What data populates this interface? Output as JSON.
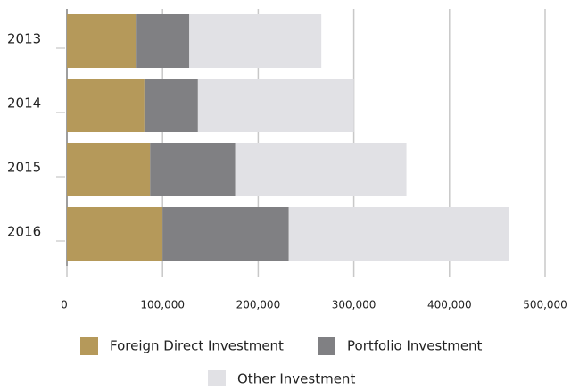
{
  "chart_data": {
    "type": "stacked_barh",
    "categories": [
      "2013",
      "2014",
      "2015",
      "2016"
    ],
    "series": [
      {
        "name": "Foreign Direct Investment",
        "color": "#b5995a",
        "values": [
          72000,
          81000,
          87000,
          100000
        ]
      },
      {
        "name": "Portfolio Investment",
        "color": "#808083",
        "values": [
          56000,
          56000,
          89000,
          132000
        ]
      },
      {
        "name": "Other Investment",
        "color": "#e1e1e5",
        "values": [
          138000,
          163000,
          179000,
          230000
        ]
      }
    ],
    "xlim": [
      0,
      500000
    ],
    "xticks": [
      0,
      {
        "value": 100000,
        "label": "100,000"
      },
      {
        "value": 200000,
        "label": "200,000"
      },
      {
        "value": 300000,
        "label": "300,000"
      },
      {
        "value": 400000,
        "label": "400,000"
      },
      {
        "value": 500000,
        "label": "500,000"
      }
    ],
    "grid": true
  }
}
